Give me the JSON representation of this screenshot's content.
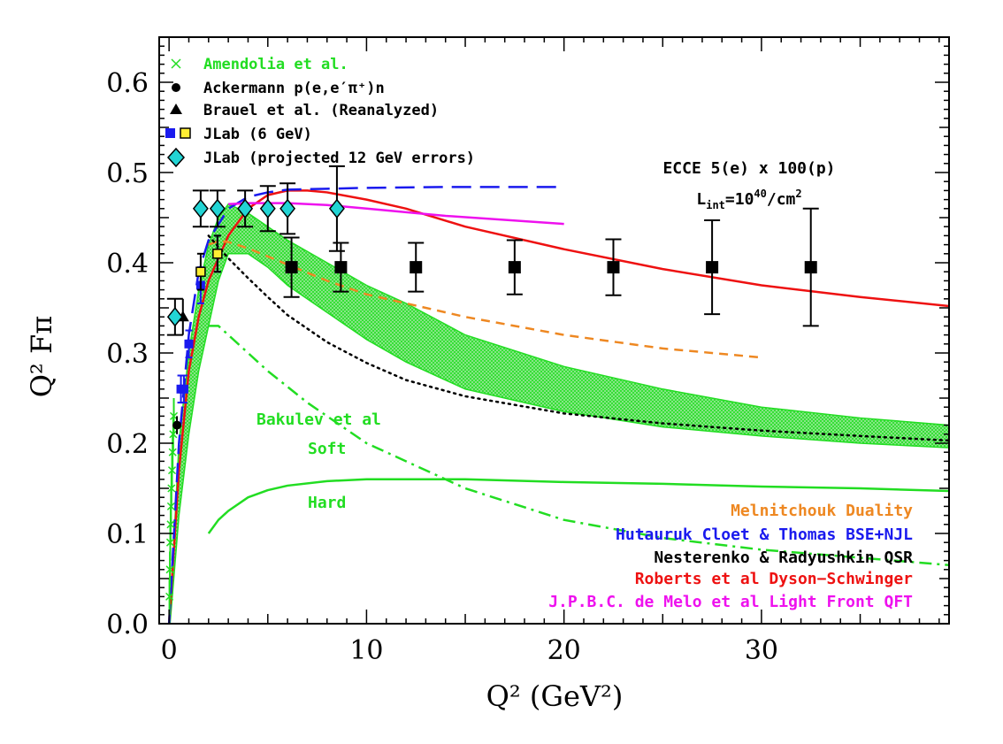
{
  "chart_data": {
    "type": "scatter",
    "xlabel": "Q² (GeV²)",
    "ylabel": "Q² Fπ",
    "xlim": [
      -0.5,
      39.5
    ],
    "ylim": [
      0.0,
      0.65
    ],
    "xticks": [
      0,
      10,
      20,
      30
    ],
    "yticks": [
      0.0,
      0.1,
      0.2,
      0.3,
      0.4,
      0.5,
      0.6
    ],
    "grid": false,
    "legend_position": "top-left",
    "colors": {
      "green": "#22dd22",
      "black": "#000000",
      "blue": "#1a1aee",
      "yellow": "#ffee33",
      "cyan": "#22d4d4",
      "orange": "#ee8822",
      "red": "#ee1111",
      "magenta": "#ee11ee"
    },
    "legend": [
      {
        "label": "Amendolia et al.",
        "marker": "cross",
        "color": "#22dd22"
      },
      {
        "label": "Ackermann p(e,e′π⁺)n",
        "marker": "circle",
        "color": "#000000"
      },
      {
        "label": "Brauel et al. (Reanalyzed)",
        "marker": "triangle",
        "color": "#000000"
      },
      {
        "label": "JLab (6 GeV)",
        "marker": "square-pair",
        "color": "#000000"
      },
      {
        "label": "JLab (projected 12 GeV errors)",
        "marker": "diamond",
        "color": "#000000"
      }
    ],
    "annotation": {
      "line1": "ECCE 5(e) x 100(p)",
      "line2_prefix": "L",
      "line2_sub": "int",
      "line2_mid": "=10",
      "line2_sup": "40",
      "line2_suffix": "/cm",
      "line2_sup2": "2"
    },
    "model_labels": [
      {
        "label": "Melnitchouk Duality",
        "color": "#ee8822"
      },
      {
        "label": "Hutauruk Cloet & Thomas BSE+NJL",
        "color": "#1a1aee"
      },
      {
        "label": "Nesterenko & Radyushkin QSR",
        "color": "#000000"
      },
      {
        "label": "Roberts et al Dyson−Schwinger",
        "color": "#ee1111"
      },
      {
        "label": "J.P.B.C. de Melo et al Light Front QFT",
        "color": "#ee11ee"
      }
    ],
    "bakulev_labels": {
      "title": "Bakulev et al",
      "soft": "Soft",
      "hard": "Hard",
      "color": "#22dd22"
    },
    "series": [
      {
        "name": "Amendolia et al.",
        "points": [
          {
            "x": 0.02,
            "y": 0.03,
            "err": 0.02
          },
          {
            "x": 0.04,
            "y": 0.06,
            "err": 0.02
          },
          {
            "x": 0.06,
            "y": 0.09,
            "err": 0.02
          },
          {
            "x": 0.08,
            "y": 0.11,
            "err": 0.02
          },
          {
            "x": 0.1,
            "y": 0.13,
            "err": 0.02
          },
          {
            "x": 0.12,
            "y": 0.15,
            "err": 0.02
          },
          {
            "x": 0.15,
            "y": 0.17,
            "err": 0.02
          },
          {
            "x": 0.18,
            "y": 0.19,
            "err": 0.02
          },
          {
            "x": 0.21,
            "y": 0.21,
            "err": 0.02
          },
          {
            "x": 0.24,
            "y": 0.23,
            "err": 0.02
          }
        ]
      },
      {
        "name": "Ackermann p(e,e′π⁺)n",
        "points": [
          {
            "x": 0.4,
            "y": 0.22,
            "err": 0.01
          }
        ]
      },
      {
        "name": "Brauel et al. (Reanalyzed)",
        "points": [
          {
            "x": 0.7,
            "y": 0.34,
            "err": 0.02
          }
        ]
      },
      {
        "name": "JLab (6 GeV) blue",
        "points": [
          {
            "x": 0.6,
            "y": 0.26,
            "err": 0.015
          },
          {
            "x": 0.75,
            "y": 0.26,
            "err": 0.015
          },
          {
            "x": 1.0,
            "y": 0.31,
            "err": 0.015
          },
          {
            "x": 1.6,
            "y": 0.375,
            "err": 0.02
          },
          {
            "x": 2.45,
            "y": 0.41,
            "err": 0.02
          }
        ]
      },
      {
        "name": "JLab (6 GeV) yellow",
        "points": [
          {
            "x": 1.6,
            "y": 0.39,
            "err": 0.02
          },
          {
            "x": 2.45,
            "y": 0.41,
            "err": 0.02
          }
        ]
      },
      {
        "name": "JLab (projected 12 GeV errors)",
        "points": [
          {
            "x": 0.3,
            "y": 0.34,
            "err": 0.02
          },
          {
            "x": 1.6,
            "y": 0.46,
            "err": 0.02
          },
          {
            "x": 2.45,
            "y": 0.46,
            "err": 0.02
          },
          {
            "x": 3.85,
            "y": 0.46,
            "err": 0.02
          },
          {
            "x": 5.0,
            "y": 0.46,
            "err": 0.025
          },
          {
            "x": 6.0,
            "y": 0.46,
            "err": 0.028
          },
          {
            "x": 8.5,
            "y": 0.46,
            "err": 0.047
          }
        ]
      },
      {
        "name": "ECCE projection",
        "points": [
          {
            "x": 6.2,
            "y": 0.395,
            "err": 0.033
          },
          {
            "x": 8.7,
            "y": 0.395,
            "err": 0.027
          },
          {
            "x": 12.5,
            "y": 0.395,
            "err": 0.027
          },
          {
            "x": 17.5,
            "y": 0.395,
            "err": 0.03
          },
          {
            "x": 22.5,
            "y": 0.395,
            "err": 0.031
          },
          {
            "x": 27.5,
            "y": 0.395,
            "err": 0.052
          },
          {
            "x": 32.5,
            "y": 0.395,
            "err": 0.065
          }
        ]
      }
    ],
    "curves": [
      {
        "name": "Roberts et al Dyson−Schwinger",
        "color": "#ee1111",
        "style": "solid",
        "x": [
          0,
          0.5,
          1,
          1.5,
          2,
          3,
          4,
          5,
          6,
          7,
          8,
          10,
          12,
          15,
          20,
          25,
          30,
          35,
          39.5
        ],
        "y": [
          0,
          0.17,
          0.28,
          0.34,
          0.38,
          0.43,
          0.46,
          0.475,
          0.48,
          0.48,
          0.478,
          0.47,
          0.46,
          0.44,
          0.415,
          0.393,
          0.375,
          0.362,
          0.352
        ]
      },
      {
        "name": "Hutauruk Cloet & Thomas BSE+NJL",
        "color": "#1a1aee",
        "style": "longdash",
        "x": [
          0,
          0.5,
          1,
          1.5,
          2,
          3,
          4,
          5,
          6,
          8,
          10,
          14,
          20
        ],
        "y": [
          0,
          0.2,
          0.32,
          0.39,
          0.425,
          0.46,
          0.473,
          0.478,
          0.481,
          0.482,
          0.483,
          0.484,
          0.484
        ]
      },
      {
        "name": "J.P.B.C. de Melo et al Light Front QFT",
        "color": "#ee11ee",
        "style": "solid",
        "x": [
          3,
          4,
          6,
          8,
          10,
          14,
          20
        ],
        "y": [
          0.465,
          0.466,
          0.466,
          0.464,
          0.46,
          0.452,
          0.443
        ]
      },
      {
        "name": "Melnitchouk Duality",
        "color": "#ee8822",
        "style": "dash",
        "x": [
          2,
          2.5,
          3,
          4,
          5,
          6,
          8,
          10,
          15,
          20,
          25,
          30
        ],
        "y": [
          0.42,
          0.424,
          0.423,
          0.416,
          0.407,
          0.398,
          0.38,
          0.365,
          0.34,
          0.32,
          0.305,
          0.295
        ]
      },
      {
        "name": "Nesterenko & Radyushkin QSR",
        "color": "#000000",
        "style": "dot",
        "x": [
          2,
          3,
          4,
          5,
          6,
          8,
          10,
          12,
          15,
          20,
          25,
          30,
          35,
          39.5
        ],
        "y": [
          0.43,
          0.405,
          0.383,
          0.362,
          0.342,
          0.312,
          0.289,
          0.27,
          0.252,
          0.233,
          0.222,
          0.214,
          0.208,
          0.203
        ]
      },
      {
        "name": "Bakulev Soft",
        "color": "#22dd22",
        "style": "dashdot",
        "x": [
          2,
          2.5,
          3,
          4,
          5,
          7,
          10,
          15,
          20,
          25,
          30,
          35,
          39.5
        ],
        "y": [
          0.33,
          0.33,
          0.32,
          0.3,
          0.28,
          0.245,
          0.2,
          0.15,
          0.115,
          0.095,
          0.082,
          0.073,
          0.065
        ]
      },
      {
        "name": "Bakulev Hard",
        "color": "#22dd22",
        "style": "solid",
        "x": [
          2,
          2.5,
          3,
          4,
          5,
          6,
          8,
          10,
          15,
          20,
          25,
          30,
          35,
          39.5
        ],
        "y": [
          0.1,
          0.115,
          0.125,
          0.14,
          0.148,
          0.153,
          0.158,
          0.16,
          0.16,
          0.157,
          0.155,
          0.152,
          0.15,
          0.147
        ]
      }
    ],
    "band": {
      "name": "Bakulev et al band",
      "color": "#22dd22",
      "x": [
        0.05,
        0.5,
        1,
        1.5,
        2,
        2.5,
        3,
        4,
        5,
        6,
        8,
        10,
        12,
        15,
        20,
        25,
        30,
        35,
        39.5
      ],
      "upper": [
        0.01,
        0.2,
        0.3,
        0.37,
        0.42,
        0.45,
        0.465,
        0.455,
        0.44,
        0.425,
        0.4,
        0.375,
        0.355,
        0.32,
        0.285,
        0.26,
        0.24,
        0.228,
        0.22
      ],
      "lower": [
        0.0,
        0.12,
        0.21,
        0.28,
        0.33,
        0.38,
        0.41,
        0.41,
        0.395,
        0.375,
        0.345,
        0.315,
        0.29,
        0.26,
        0.235,
        0.218,
        0.208,
        0.2,
        0.195
      ]
    }
  }
}
